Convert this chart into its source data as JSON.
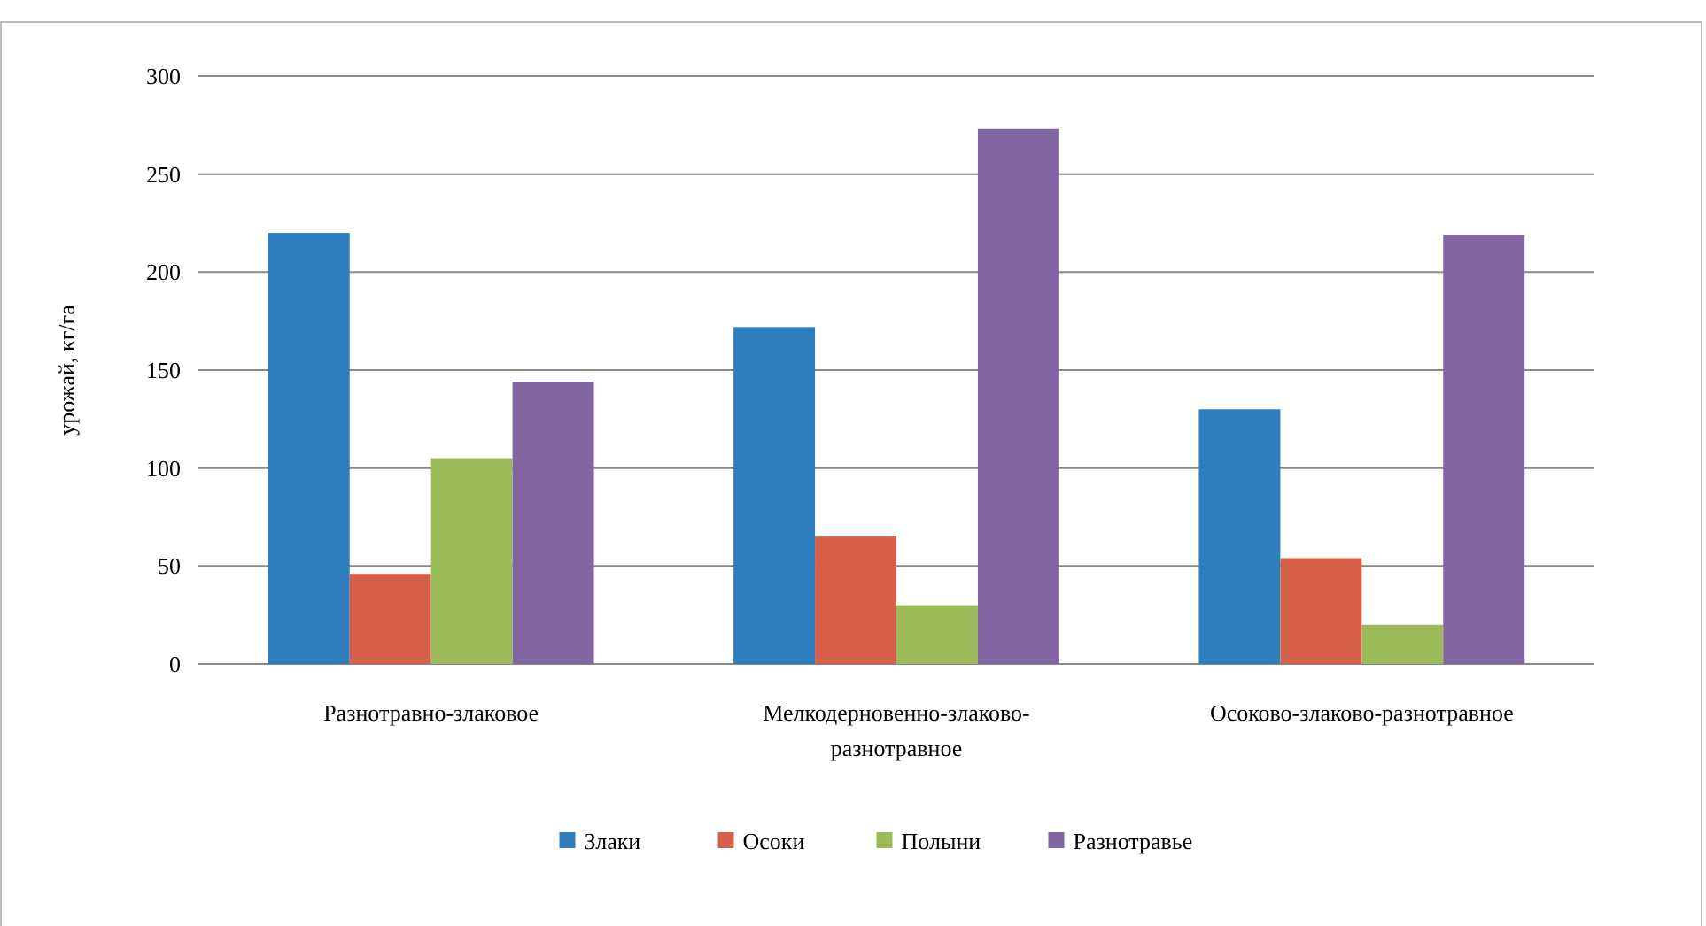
{
  "chart_data": {
    "type": "bar",
    "ylabel": "урожай, кг/га",
    "categories": [
      "Разнотравно-злаковое",
      "Мелкодерновенно-злаково-разнотравное",
      "Осоково-злаково-разнотравное"
    ],
    "series": [
      {
        "name": "Злаки",
        "color": "#2e7ebe",
        "values": [
          220,
          172,
          130
        ]
      },
      {
        "name": "Осоки",
        "color": "#d55f48",
        "values": [
          46,
          65,
          54
        ]
      },
      {
        "name": "Полыни",
        "color": "#9bbb59",
        "values": [
          105,
          30,
          20
        ]
      },
      {
        "name": "Разнотравье",
        "color": "#8266a4",
        "values": [
          144,
          273,
          219
        ]
      }
    ],
    "ylim": [
      0,
      300
    ],
    "yticks": [
      0,
      50,
      100,
      150,
      200,
      250,
      300
    ],
    "grid": "y",
    "legend": "bottom"
  }
}
